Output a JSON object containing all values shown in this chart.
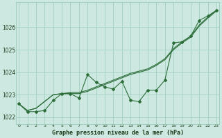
{
  "xlabel": "Graphe pression niveau de la mer (hPa)",
  "background_color": "#cce8e0",
  "grid_color": "#99ccbb",
  "line_color": "#2d6e3a",
  "x": [
    0,
    1,
    2,
    3,
    4,
    5,
    6,
    7,
    8,
    9,
    10,
    11,
    12,
    13,
    14,
    15,
    16,
    17,
    18,
    19,
    20,
    21,
    22,
    23
  ],
  "y_main": [
    1022.6,
    1022.25,
    1022.25,
    1022.3,
    1022.75,
    1023.05,
    1023.05,
    1022.85,
    1023.9,
    1023.55,
    1023.35,
    1023.25,
    1023.6,
    1022.75,
    1022.7,
    1023.2,
    1023.2,
    1023.65,
    1025.3,
    1025.35,
    1025.6,
    1026.3,
    1026.5,
    1026.75
  ],
  "y_trend1": [
    1022.6,
    1022.3,
    1022.4,
    1022.7,
    1023.0,
    1023.05,
    1023.05,
    1023.05,
    1023.15,
    1023.3,
    1023.45,
    1023.6,
    1023.75,
    1023.9,
    1024.0,
    1024.1,
    1024.3,
    1024.55,
    1025.0,
    1025.3,
    1025.55,
    1026.05,
    1026.4,
    1026.72
  ],
  "y_trend2": [
    1022.6,
    1022.3,
    1022.4,
    1022.7,
    1023.0,
    1023.05,
    1023.1,
    1023.1,
    1023.2,
    1023.35,
    1023.5,
    1023.65,
    1023.8,
    1023.95,
    1024.05,
    1024.15,
    1024.35,
    1024.6,
    1025.05,
    1025.35,
    1025.6,
    1026.1,
    1026.45,
    1026.75
  ],
  "ylim_min": 1021.7,
  "ylim_max": 1027.1,
  "yticks": [
    1022,
    1023,
    1024,
    1025,
    1026
  ],
  "xticks": [
    0,
    1,
    2,
    3,
    4,
    5,
    6,
    7,
    8,
    9,
    10,
    11,
    12,
    13,
    14,
    15,
    16,
    17,
    18,
    19,
    20,
    21,
    22,
    23
  ]
}
